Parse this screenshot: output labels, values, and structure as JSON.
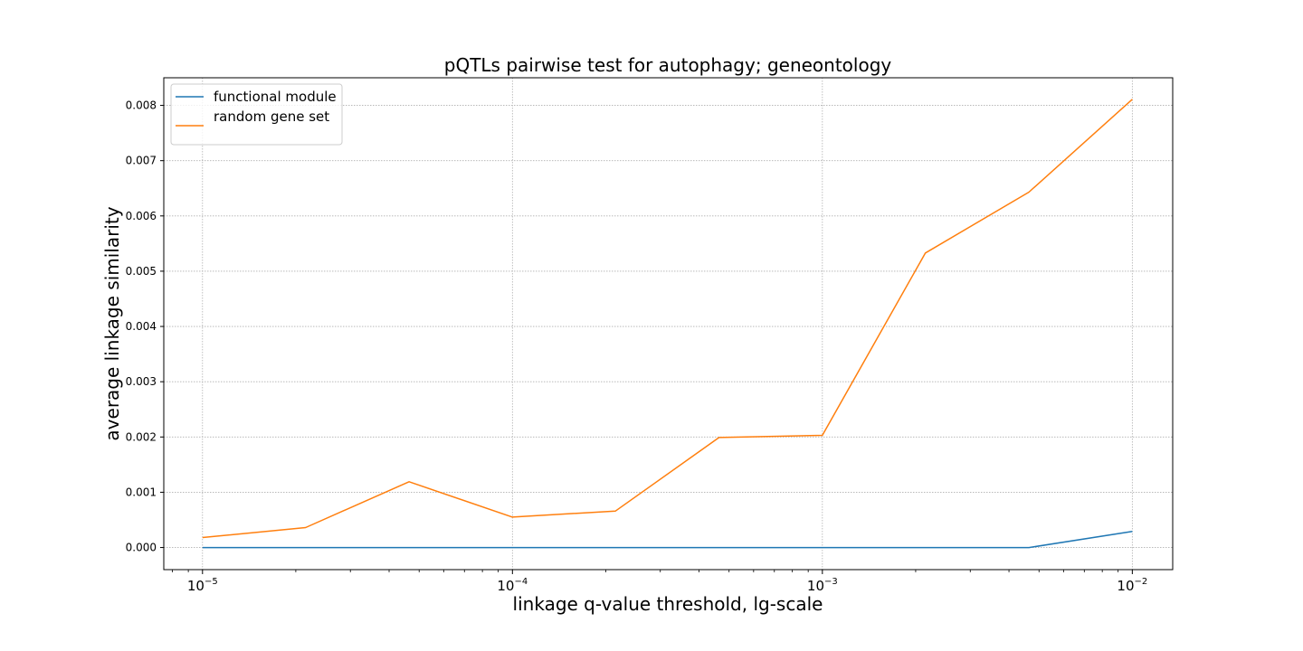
{
  "chart_data": {
    "type": "line",
    "title": "pQTLs pairwise test for autophagy; geneontology",
    "xlabel": "linkage q-value threshold, lg-scale",
    "ylabel": "average linkage similarity",
    "x_scale": "log",
    "xlim": [
      7.5e-06,
      0.0135
    ],
    "ylim": [
      -0.0004,
      0.0085
    ],
    "x_ticks": [
      {
        "value": 1e-05,
        "base": "10",
        "exp": "−5"
      },
      {
        "value": 0.0001,
        "base": "10",
        "exp": "−4"
      },
      {
        "value": 0.001,
        "base": "10",
        "exp": "−3"
      },
      {
        "value": 0.01,
        "base": "10",
        "exp": "−2"
      }
    ],
    "y_ticks": [
      "0.000",
      "0.001",
      "0.002",
      "0.003",
      "0.004",
      "0.005",
      "0.006",
      "0.007",
      "0.008"
    ],
    "grid": true,
    "legend_position": "top-left",
    "x": [
      1e-05,
      2.15e-05,
      4.64e-05,
      0.0001,
      0.000215,
      0.000464,
      0.001,
      0.00215,
      0.00464,
      0.01
    ],
    "series": [
      {
        "name": "functional module",
        "color": "#1f77b4",
        "values": [
          0,
          0,
          0,
          0,
          0,
          0,
          0,
          0,
          0,
          0.00029
        ]
      },
      {
        "name": "random gene set",
        "color": "#ff7f0e",
        "values": [
          0.00018,
          0.00036,
          0.00119,
          0.00055,
          0.00066,
          0.00199,
          0.00203,
          0.00533,
          0.00643,
          0.00811
        ]
      }
    ]
  }
}
